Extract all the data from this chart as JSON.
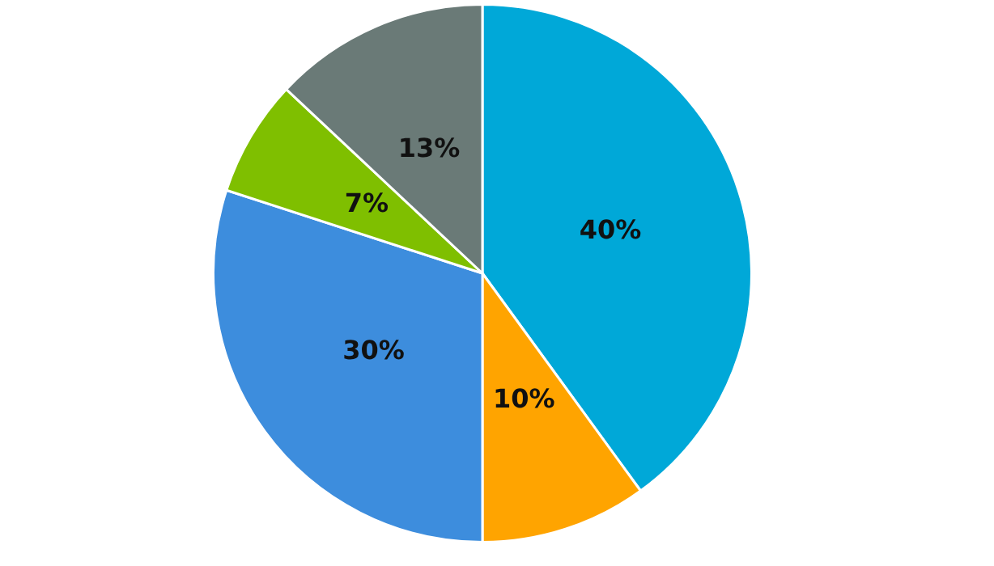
{
  "chart_data": {
    "type": "pie",
    "categories": [
      null,
      null,
      null,
      null,
      null
    ],
    "values": [
      40,
      10,
      30,
      7,
      13
    ],
    "colors": [
      "#00a8d8",
      "#ffa400",
      "#3d8ddd",
      "#7fbf00",
      "#6a7a77"
    ],
    "value_labels": [
      "40%",
      "10%",
      "30%",
      "7%",
      "13%"
    ]
  }
}
